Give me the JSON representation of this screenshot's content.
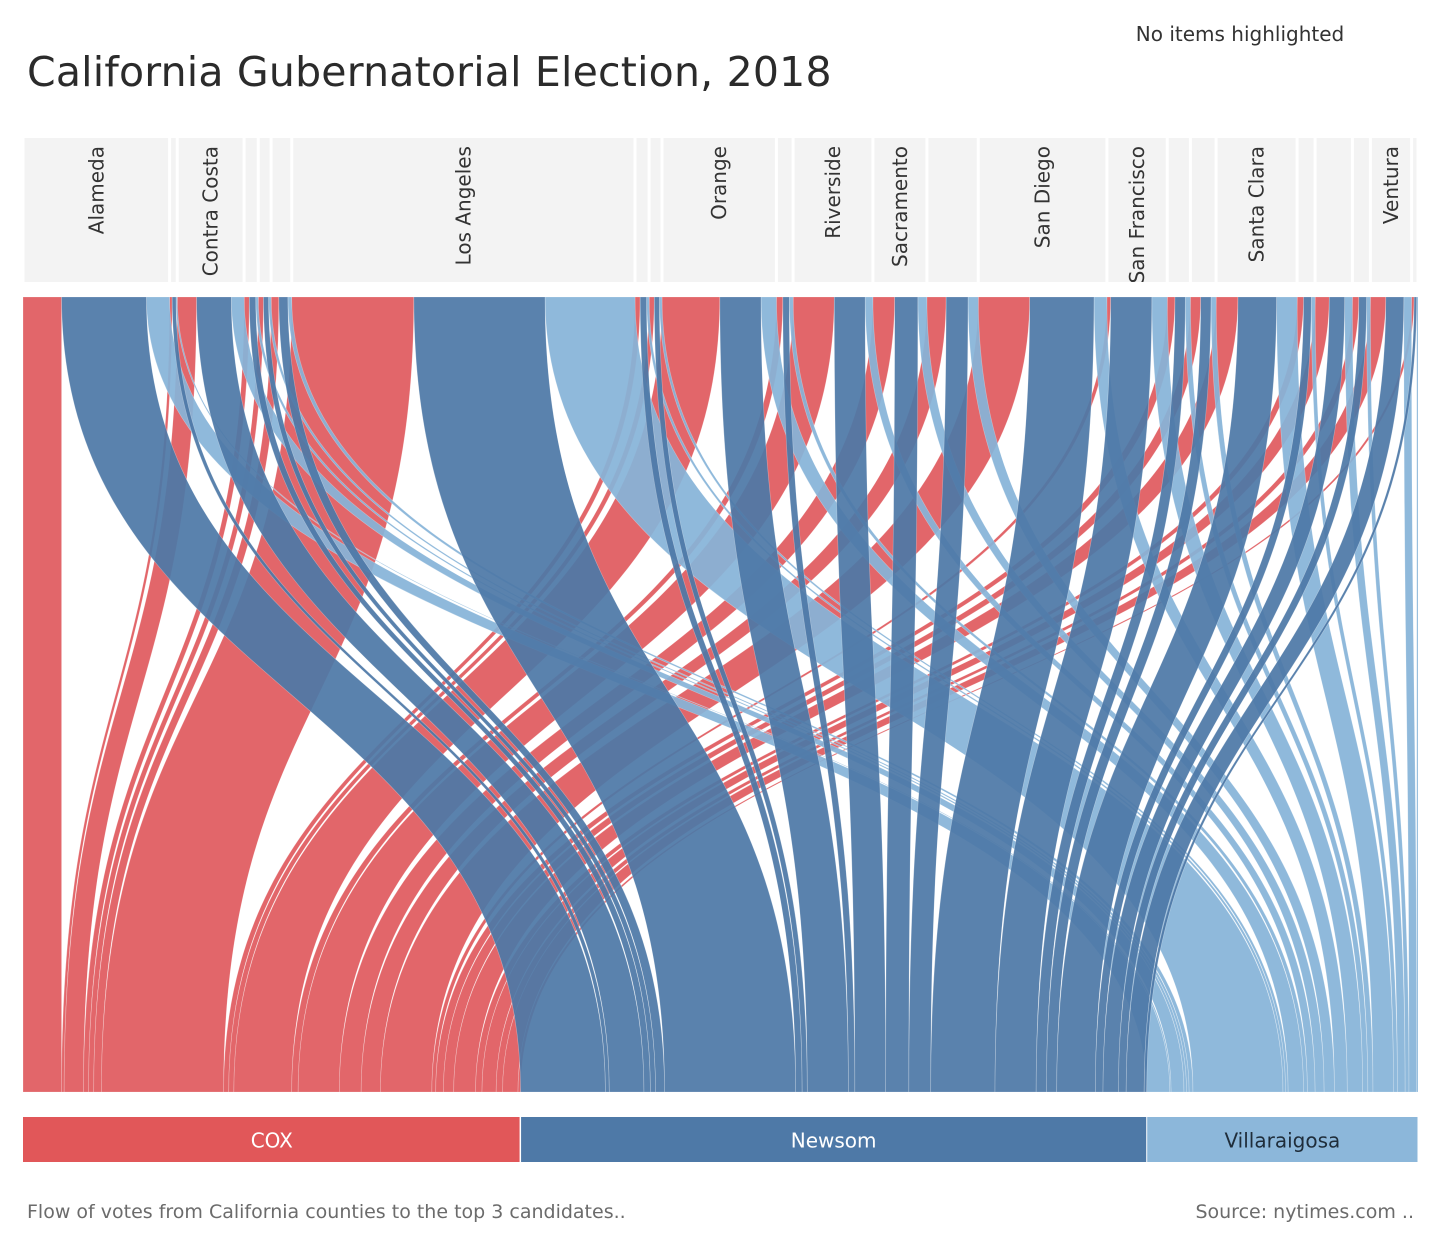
{
  "header": {
    "title": "California Gubernatorial Election, 2018",
    "highlight_status": "No items highlighted"
  },
  "footer": {
    "note": "Flow of votes from California counties to the top 3 candidates..",
    "source": "Source: nytimes.com .."
  },
  "colors": {
    "cox": "#e05a5f",
    "newsom": "#4e79a7",
    "villaraigosa": "#86b4d8",
    "county_header_bg": "#f3f3f3"
  },
  "chart_data": {
    "type": "sankey",
    "title": "California Gubernatorial Election, 2018",
    "candidates": [
      {
        "name": "COX",
        "share": 0.357
      },
      {
        "name": "Newsom",
        "share": 0.458
      },
      {
        "name": "Villaraigosa",
        "share": 0.185
      }
    ],
    "counties": [
      {
        "name": "Alameda",
        "labeled": true,
        "cox": 0.03,
        "newsom": 0.066,
        "villaraigosa": 0.018
      },
      {
        "name": "",
        "labeled": false,
        "cox": 0.002,
        "newsom": 0.003,
        "villaraigosa": 0.001
      },
      {
        "name": "Contra Costa",
        "labeled": true,
        "cox": 0.015,
        "newsom": 0.027,
        "villaraigosa": 0.01
      },
      {
        "name": "",
        "labeled": false,
        "cox": 0.004,
        "newsom": 0.005,
        "villaraigosa": 0.002
      },
      {
        "name": "",
        "labeled": false,
        "cox": 0.004,
        "newsom": 0.004,
        "villaraigosa": 0.002
      },
      {
        "name": "",
        "labeled": false,
        "cox": 0.006,
        "newsom": 0.007,
        "villaraigosa": 0.003
      },
      {
        "name": "Los Angeles",
        "labeled": true,
        "cox": 0.095,
        "newsom": 0.102,
        "villaraigosa": 0.07
      },
      {
        "name": "",
        "labeled": false,
        "cox": 0.004,
        "newsom": 0.005,
        "villaraigosa": 0.002
      },
      {
        "name": "",
        "labeled": false,
        "cox": 0.004,
        "newsom": 0.004,
        "villaraigosa": 0.002
      },
      {
        "name": "Orange",
        "labeled": true,
        "cox": 0.045,
        "newsom": 0.032,
        "villaraigosa": 0.012
      },
      {
        "name": "",
        "labeled": false,
        "cox": 0.005,
        "newsom": 0.005,
        "villaraigosa": 0.003
      },
      {
        "name": "Riverside",
        "labeled": true,
        "cox": 0.032,
        "newsom": 0.024,
        "villaraigosa": 0.006
      },
      {
        "name": "Sacramento",
        "labeled": true,
        "cox": 0.017,
        "newsom": 0.018,
        "villaraigosa": 0.007
      },
      {
        "name": "",
        "labeled": false,
        "cox": 0.015,
        "newsom": 0.017,
        "villaraigosa": 0.008
      },
      {
        "name": "San Diego",
        "labeled": true,
        "cox": 0.04,
        "newsom": 0.05,
        "villaraigosa": 0.01
      },
      {
        "name": "San Francisco",
        "labeled": true,
        "cox": 0.003,
        "newsom": 0.032,
        "villaraigosa": 0.012
      },
      {
        "name": "",
        "labeled": false,
        "cox": 0.006,
        "newsom": 0.008,
        "villaraigosa": 0.004
      },
      {
        "name": "",
        "labeled": false,
        "cox": 0.008,
        "newsom": 0.008,
        "villaraigosa": 0.004
      },
      {
        "name": "Santa Clara",
        "labeled": true,
        "cox": 0.017,
        "newsom": 0.03,
        "villaraigosa": 0.016
      },
      {
        "name": "",
        "labeled": false,
        "cox": 0.005,
        "newsom": 0.006,
        "villaraigosa": 0.003
      },
      {
        "name": "",
        "labeled": false,
        "cox": 0.011,
        "newsom": 0.012,
        "villaraigosa": 0.006
      },
      {
        "name": "",
        "labeled": false,
        "cox": 0.005,
        "newsom": 0.006,
        "villaraigosa": 0.003
      },
      {
        "name": "Ventura",
        "labeled": true,
        "cox": 0.012,
        "newsom": 0.014,
        "villaraigosa": 0.006
      },
      {
        "name": "",
        "labeled": false,
        "cox": 0.002,
        "newsom": 0.002,
        "villaraigosa": 0.001
      }
    ]
  }
}
